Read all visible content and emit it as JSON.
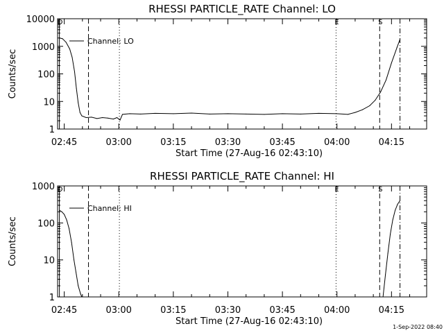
{
  "footer_timestamp": "1-Sep-2022 08:40",
  "chart_data": [
    {
      "type": "line",
      "title": "RHESSI PARTICLE_RATE Channel: LO",
      "xlabel": "Start Time (27-Aug-16 02:43:10)",
      "ylabel": "Counts/sec",
      "y_scale": "log",
      "ylim": [
        1,
        10000
      ],
      "xlim": [
        "02:43:10",
        "04:24:40"
      ],
      "x_ticks": [
        "02:45",
        "03:00",
        "03:15",
        "03:30",
        "03:45",
        "04:00",
        "04:15"
      ],
      "y_ticks": [
        "1",
        "10",
        "100",
        "1000",
        "10000"
      ],
      "grid": false,
      "legend": {
        "position": "top-left",
        "entries": [
          "Channel: LO"
        ]
      },
      "markers": [
        {
          "label": "D",
          "time": "02:43:40",
          "style": "solid"
        },
        {
          "label": "",
          "time": "02:51:40",
          "style": "dashed"
        },
        {
          "label": "",
          "time": "03:00:10",
          "style": "dotted"
        },
        {
          "label": "E",
          "time": "03:59:45",
          "style": "dotted"
        },
        {
          "label": "S",
          "time": "04:11:45",
          "style": "dashed"
        },
        {
          "label": "",
          "time": "04:17:20",
          "style": "dashdot"
        }
      ],
      "series": [
        {
          "x": [
            "02:43:40",
            "02:44:30",
            "02:45:30",
            "02:46:30",
            "02:47:10",
            "02:47:50",
            "02:48:20",
            "02:48:50",
            "02:49:20",
            "02:49:50",
            "02:51:00",
            "02:52:30",
            "02:54:00",
            "02:55:30",
            "02:57:00",
            "02:58:30",
            "02:59:30",
            "03:00:20",
            "03:01:00",
            "03:03:00",
            "03:06:00",
            "03:10:00",
            "03:15:00",
            "03:20:00",
            "03:25:00",
            "03:30:00",
            "03:35:00",
            "03:40:00",
            "03:45:00",
            "03:50:00",
            "03:55:00",
            "04:00:00",
            "04:03:00",
            "04:05:00",
            "04:07:00",
            "04:09:00",
            "04:10:30",
            "04:12:00",
            "04:13:30",
            "04:15:00",
            "04:16:30",
            "04:17:20"
          ],
          "values": [
            2000,
            1900,
            1400,
            800,
            400,
            120,
            30,
            9,
            4,
            3,
            2.6,
            2.7,
            2.4,
            2.6,
            2.5,
            2.3,
            2.6,
            2.1,
            3.4,
            3.6,
            3.5,
            3.7,
            3.6,
            3.8,
            3.5,
            3.6,
            3.5,
            3.4,
            3.6,
            3.5,
            3.7,
            3.6,
            3.4,
            4,
            5,
            7,
            11,
            22,
            60,
            250,
            900,
            1800
          ]
        }
      ]
    },
    {
      "type": "line",
      "title": "RHESSI PARTICLE_RATE Channel: HI",
      "xlabel": "Start Time (27-Aug-16 02:43:10)",
      "ylabel": "Counts/sec",
      "y_scale": "log",
      "ylim": [
        1,
        1000
      ],
      "xlim": [
        "02:43:10",
        "04:24:40"
      ],
      "x_ticks": [
        "02:45",
        "03:00",
        "03:15",
        "03:30",
        "03:45",
        "04:00",
        "04:15"
      ],
      "y_ticks": [
        "1",
        "10",
        "100",
        "1000"
      ],
      "grid": false,
      "legend": {
        "position": "top-left",
        "entries": [
          "Channel: HI"
        ]
      },
      "markers": [
        {
          "label": "D",
          "time": "02:43:40",
          "style": "solid"
        },
        {
          "label": "",
          "time": "02:51:40",
          "style": "dashed"
        },
        {
          "label": "",
          "time": "03:00:10",
          "style": "dotted"
        },
        {
          "label": "E",
          "time": "03:59:45",
          "style": "dotted"
        },
        {
          "label": "S",
          "time": "04:11:45",
          "style": "dashed"
        },
        {
          "label": "",
          "time": "04:17:20",
          "style": "dashdot"
        }
      ],
      "series": [
        {
          "x": [
            "02:43:40",
            "02:44:20",
            "02:45:00",
            "02:45:40",
            "02:46:20",
            "02:47:00",
            "02:47:40",
            "02:48:20",
            "02:48:50",
            "02:49:30",
            "02:49:50",
            "04:12:40",
            "04:13:20",
            "04:14:00",
            "04:14:40",
            "04:15:20",
            "04:16:00",
            "04:16:40",
            "04:17:20"
          ],
          "values": [
            220,
            200,
            170,
            120,
            70,
            30,
            10,
            4,
            2,
            1.2,
            1,
            1,
            4,
            15,
            50,
            120,
            220,
            320,
            400
          ]
        }
      ]
    }
  ]
}
